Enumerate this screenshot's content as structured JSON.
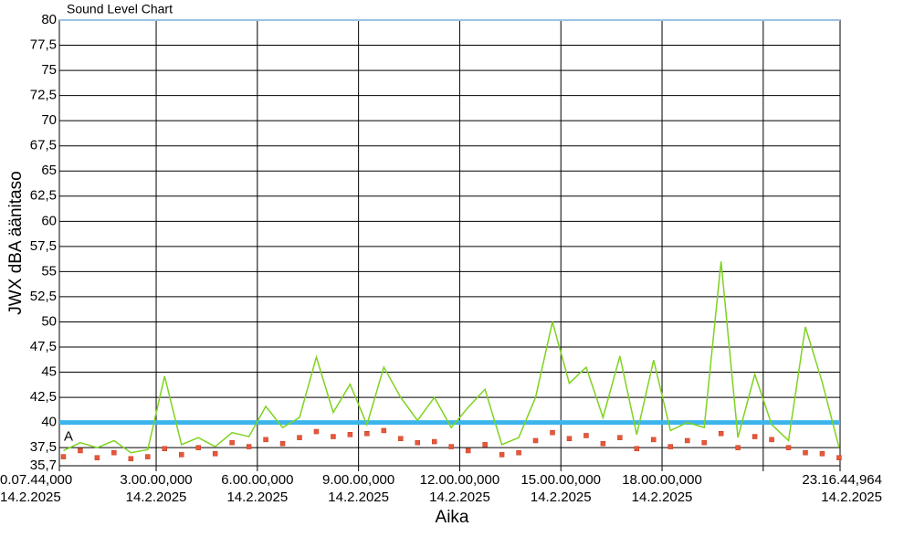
{
  "chart_data": {
    "type": "line",
    "title": "Sound Level Chart",
    "xlabel": "Aika",
    "ylabel": "JWX dBA äänitaso",
    "xlim": [
      0.129,
      23.279
    ],
    "xticks": [
      {
        "value": 0.129,
        "label": "0.07.44,000",
        "date": "14.2.2025"
      },
      {
        "value": 3,
        "label": "3.00.00,000",
        "date": "14.2.2025"
      },
      {
        "value": 6,
        "label": "6.00.00,000",
        "date": "14.2.2025"
      },
      {
        "value": 9,
        "label": "9.00.00,000",
        "date": "14.2.2025"
      },
      {
        "value": 12,
        "label": "12.00.00,000",
        "date": "14.2.2025"
      },
      {
        "value": 15,
        "label": "15.00.00,000",
        "date": "14.2.2025"
      },
      {
        "value": 18,
        "label": "18.00.00,000",
        "date": "14.2.2025"
      },
      {
        "value": 21,
        "label": null,
        "date": null
      },
      {
        "value": 23.279,
        "label": "23.16.44,964",
        "date": "14.2.2025"
      }
    ],
    "ylim": [
      35.7,
      80
    ],
    "yticks": [
      {
        "value": 35.7,
        "label": "35,7"
      },
      {
        "value": 37.5,
        "label": "37,5"
      },
      40,
      {
        "value": 42.5,
        "label": "42,5"
      },
      45,
      {
        "value": 47.5,
        "label": "47,5"
      },
      50,
      {
        "value": 52.5,
        "label": "52,5"
      },
      55,
      {
        "value": 57.5,
        "label": "57,5"
      },
      60,
      {
        "value": 62.5,
        "label": "62,5"
      },
      65,
      {
        "value": 67.5,
        "label": "67,5"
      },
      70,
      {
        "value": 72.5,
        "label": "72,5"
      },
      75,
      {
        "value": 77.5,
        "label": "77,5"
      },
      80
    ],
    "grid": true,
    "threshold": {
      "value": 40,
      "label": "A",
      "color": "#3cb4ec"
    },
    "x": [
      0.25,
      0.75,
      1.25,
      1.75,
      2.25,
      2.75,
      3.25,
      3.75,
      4.25,
      4.75,
      5.25,
      5.75,
      6.25,
      6.75,
      7.25,
      7.75,
      8.25,
      8.75,
      9.25,
      9.75,
      10.25,
      10.75,
      11.25,
      11.75,
      12.25,
      12.75,
      13.25,
      13.75,
      14.25,
      14.75,
      15.25,
      15.75,
      16.25,
      16.75,
      17.25,
      17.75,
      18.25,
      18.75,
      19.25,
      19.75,
      20.25,
      20.75,
      21.25,
      21.75,
      22.25,
      22.75,
      23.25
    ],
    "series": [
      {
        "color": "#7ed321",
        "style": "line",
        "values": [
          37.2,
          38.0,
          37.5,
          38.2,
          37.0,
          37.3,
          44.6,
          37.8,
          38.5,
          37.6,
          39.0,
          38.6,
          41.6,
          39.5,
          40.5,
          46.5,
          41.0,
          43.8,
          39.8,
          45.5,
          42.5,
          40.2,
          42.5,
          39.5,
          41.5,
          43.3,
          37.8,
          38.5,
          42.5,
          50.0,
          43.9,
          45.5,
          40.5,
          46.6,
          38.8,
          46.2,
          39.2,
          40.0,
          39.5,
          56.0,
          38.5,
          44.8,
          39.8,
          38.2,
          49.5,
          44.0,
          37.5
        ]
      },
      {
        "color": "#e8573a",
        "style": "markers",
        "values": [
          36.6,
          37.2,
          36.5,
          37.0,
          36.4,
          36.6,
          37.4,
          36.8,
          37.5,
          36.9,
          38.0,
          37.6,
          38.3,
          37.9,
          38.5,
          39.1,
          38.6,
          38.8,
          38.9,
          39.2,
          38.4,
          38.0,
          38.1,
          37.6,
          37.2,
          37.8,
          36.8,
          37.0,
          38.2,
          39.0,
          38.4,
          38.7,
          37.9,
          38.5,
          37.4,
          38.3,
          37.6,
          38.2,
          38.0,
          38.9,
          37.5,
          38.6,
          38.3,
          37.5,
          37.0,
          36.9,
          36.5
        ]
      }
    ]
  }
}
